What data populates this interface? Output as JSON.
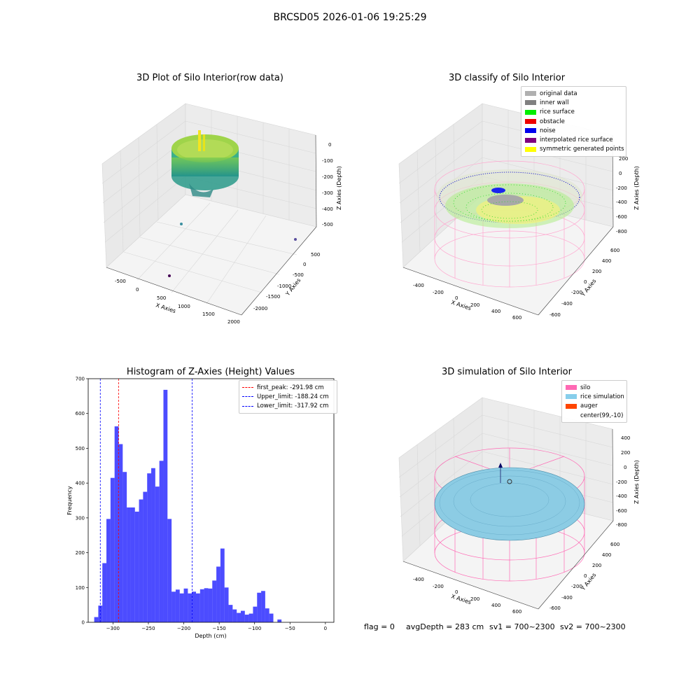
{
  "figure": {
    "suptitle": "BRCSD05 2026-01-06 19:25:29"
  },
  "raw_plot": {
    "title": "3D Plot of Silo Interior(row data)",
    "x_label": "X Axies",
    "y_label": "Y Axies",
    "z_label": "Z Axies (Depth)",
    "x_ticks": [
      "-500",
      "0",
      "500",
      "1000",
      "1500",
      "2000"
    ],
    "y_ticks": [
      "500",
      "0",
      "-500",
      "-1000",
      "-1500",
      "-2000"
    ],
    "z_ticks": [
      "0",
      "-100",
      "-200",
      "-300",
      "-400",
      "-500"
    ]
  },
  "classify_plot": {
    "title": "3D classify of Silo Interior",
    "x_label": "X Axies",
    "y_label": "Y Axies",
    "z_label": "Z Axies (Depth)",
    "x_ticks": [
      "-400",
      "-200",
      "0",
      "200",
      "400",
      "600"
    ],
    "y_ticks": [
      "600",
      "400",
      "200",
      "0",
      "-200",
      "-400",
      "-600"
    ],
    "z_ticks": [
      "200",
      "0",
      "-200",
      "-400",
      "-600",
      "-800"
    ],
    "legend": [
      {
        "label": "original data",
        "color": "#b0b0b0"
      },
      {
        "label": "inner wall",
        "color": "#808080"
      },
      {
        "label": "rice surface",
        "color": "#00ee00"
      },
      {
        "label": "obstacle",
        "color": "#ee0000"
      },
      {
        "label": "noise",
        "color": "#0000ee"
      },
      {
        "label": "interpolated rice surface",
        "color": "#800080"
      },
      {
        "label": "symmetric generated points",
        "color": "#ffff00"
      }
    ]
  },
  "simulation_plot": {
    "title": "3D simulation of Silo Interior",
    "x_label": "X Axies",
    "y_label": "Y Axies",
    "z_label": "Z Axies (Depth)",
    "x_ticks": [
      "-400",
      "-200",
      "0",
      "200",
      "400",
      "600"
    ],
    "y_ticks": [
      "600",
      "400",
      "200",
      "0",
      "-200",
      "-400",
      "-600"
    ],
    "z_ticks": [
      "400",
      "200",
      "0",
      "-200",
      "-400",
      "-600",
      "-800"
    ],
    "legend": [
      {
        "label": "silo",
        "color": "#ff69b4"
      },
      {
        "label": "rice simulation",
        "color": "#87ceeb"
      },
      {
        "label": "auger",
        "color": "#ff4500"
      },
      {
        "label": "center(99,-10)",
        "color": "#ffffff"
      }
    ]
  },
  "status": {
    "flag": "flag = 0",
    "avg_depth": "avgDepth = 283 cm",
    "sv1": "sv1 = 700~2300",
    "sv2": "sv2 = 700~2300"
  },
  "chart_data": [
    {
      "type": "histogram",
      "title": "Histogram of Z-Axies (Height) Values",
      "xlabel": "Depth (cm)",
      "ylabel": "Frequency",
      "xlim": [
        -335,
        12
      ],
      "ylim": [
        0,
        700
      ],
      "bin_width": 5.75,
      "bin_start": -326.5,
      "x_ticks": [
        -300,
        -250,
        -200,
        -150,
        -100,
        -50,
        0
      ],
      "x_tick_labels": [
        "−300",
        "−250",
        "−200",
        "−150",
        "−100",
        "−50",
        "0"
      ],
      "y_ticks": [
        0,
        100,
        200,
        300,
        400,
        500,
        600,
        700
      ],
      "y_tick_labels": [
        "0",
        "100",
        "200",
        "300",
        "400",
        "500",
        "600",
        "700"
      ],
      "values": [
        15,
        48,
        170,
        297,
        415,
        563,
        512,
        432,
        330,
        330,
        318,
        353,
        375,
        428,
        443,
        390,
        464,
        668,
        297,
        88,
        94,
        83,
        97,
        83,
        88,
        83,
        95,
        98,
        97,
        120,
        160,
        212,
        100,
        50,
        37,
        27,
        33,
        22,
        25,
        45,
        85,
        90,
        40,
        25,
        0,
        8
      ],
      "color": "#0000ff",
      "vlines": [
        {
          "name": "first_peak: -291.98 cm",
          "x": -291.98,
          "color": "#ff0000"
        },
        {
          "name": "Upper_limit: -188.24 cm",
          "x": -188.24,
          "color": "#0000ff"
        },
        {
          "name": "Lower_limit: -317.92 cm",
          "x": -317.92,
          "color": "#0000ff"
        }
      ],
      "legend_position": "upper right",
      "grid": false
    }
  ]
}
